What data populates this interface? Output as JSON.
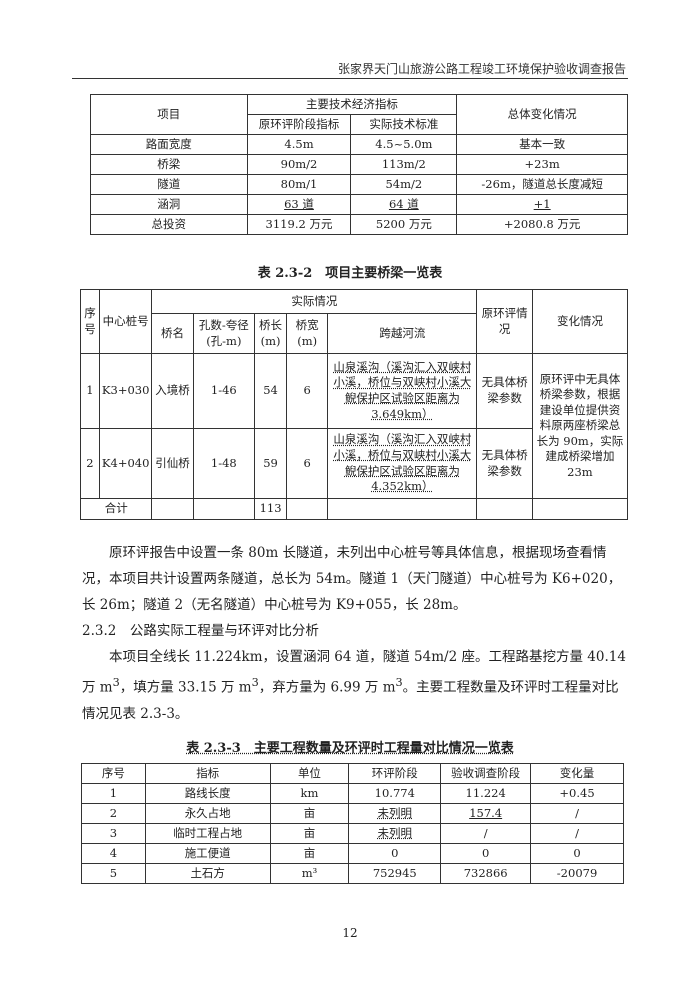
{
  "header": {
    "title": "张家界天门山旅游公路工程竣工环境保护验收调查报告"
  },
  "table1": {
    "h_item": "项目",
    "h_group": "主要技术经济指标",
    "h_orig": "原环评阶段指标",
    "h_actual": "实际技术标准",
    "h_change": "总体变化情况",
    "rows": [
      [
        "路面宽度",
        "4.5m",
        "4.5~5.0m",
        "基本一致"
      ],
      [
        "桥梁",
        "90m/2",
        "113m/2",
        "+23m"
      ],
      [
        "隧道",
        "80m/1",
        "54m/2",
        "-26m，隧道总长度减短"
      ],
      [
        "涵洞",
        "63 道",
        "64 道",
        "+1"
      ],
      [
        "总投资",
        "3119.2 万元",
        "5200 万元",
        "+2080.8 万元"
      ]
    ]
  },
  "table2": {
    "caption": "表 2.3-2　项目主要桥梁一览表",
    "h_no": "序号",
    "h_stake": "中心桩号",
    "h_actual": "实际情况",
    "h_name": "桥名",
    "h_span": "孔数-夸径(孔-m)",
    "h_len": "桥长(m)",
    "h_width": "桥宽(m)",
    "h_river": "跨越河流",
    "h_orig": "原环评情况",
    "h_change": "变化情况",
    "rows": [
      {
        "no": "1",
        "stake": "K3+030",
        "name": "入境桥",
        "span": "1-46",
        "len": "54",
        "width": "6",
        "river": "山泉溪沟（溪沟汇入双峡村小溪，桥位与双峡村小溪大鲵保护区试验区距离为3.649km）",
        "orig": "无具体桥梁参数"
      },
      {
        "no": "2",
        "stake": "K4+040",
        "name": "引仙桥",
        "span": "1-48",
        "len": "59",
        "width": "6",
        "river": "山泉溪沟（溪沟汇入双峡村小溪，桥位与双峡村小溪大鲵保护区试验区距离为4.352km）",
        "orig": "无具体桥梁参数"
      }
    ],
    "change": "原环评中无具体桥梁参数，根据建设单位提供资料原两座桥梁总长为 90m，实际建成桥梁增加 23m",
    "total_label": "合计",
    "total_len": "113"
  },
  "body": {
    "p1": "原环评报告中设置一条 80m 长隧道，未列出中心桩号等具体信息，根据现场查看情况，本项目共计设置两条隧道，总长为 54m。隧道 1（天门隧道）中心桩号为 K6+020，长 26m；隧道 2（无名隧道）中心桩号为 K9+055，长 28m。",
    "section": "2.3.2　公路实际工程量与环评对比分析",
    "p2a": "本项目全线长 11.224km，设置涵洞 64 道，隧道 54m/2 座。工程路基挖方量 40.14 万 m",
    "p2b": "，填方量 33.15 万 m",
    "p2c": "，弃方量为 6.99 万 m",
    "p2d": "。主要工程数量及环评时工程量对比情况见表 2.3-3。",
    "sup": "3"
  },
  "table3": {
    "caption": "表 2.3-3　主要工程数量及环评时工程量对比情况一览表",
    "headers": [
      "序号",
      "指标",
      "单位",
      "环评阶段",
      "验收调查阶段",
      "变化量"
    ],
    "rows": [
      [
        "1",
        "路线长度",
        "km",
        "10.774",
        "11.224",
        "+0.45"
      ],
      [
        "2",
        "永久占地",
        "亩",
        "未列明",
        "157.4",
        "/"
      ],
      [
        "3",
        "临时工程占地",
        "亩",
        "未列明",
        "/",
        "/"
      ],
      [
        "4",
        "施工便道",
        "亩",
        "0",
        "0",
        "0"
      ],
      [
        "5",
        "土石方",
        "m³",
        "752945",
        "732866",
        "-20079"
      ]
    ]
  },
  "page_number": "12"
}
